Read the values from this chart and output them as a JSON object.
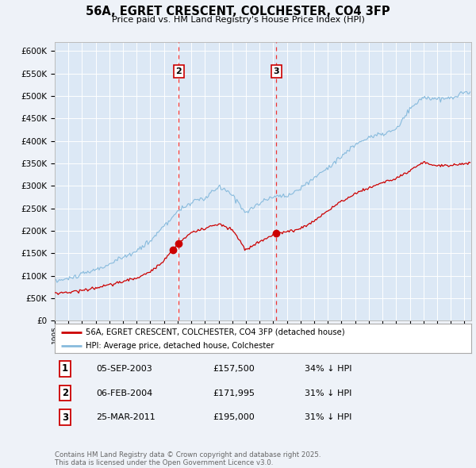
{
  "title": "56A, EGRET CRESCENT, COLCHESTER, CO4 3FP",
  "subtitle": "Price paid vs. HM Land Registry's House Price Index (HPI)",
  "background_color": "#eef2f8",
  "plot_bg_color": "#dce8f5",
  "grid_color": "#ffffff",
  "xlim_start": 1995.0,
  "xlim_end": 2025.5,
  "ylim_min": 0,
  "ylim_max": 620000,
  "yticks": [
    0,
    50000,
    100000,
    150000,
    200000,
    250000,
    300000,
    350000,
    400000,
    450000,
    500000,
    550000,
    600000
  ],
  "ytick_labels": [
    "£0",
    "£50K",
    "£100K",
    "£150K",
    "£200K",
    "£250K",
    "£300K",
    "£350K",
    "£400K",
    "£450K",
    "£500K",
    "£550K",
    "£600K"
  ],
  "xticks": [
    1995,
    1996,
    1997,
    1998,
    1999,
    2000,
    2001,
    2002,
    2003,
    2004,
    2005,
    2006,
    2007,
    2008,
    2009,
    2010,
    2011,
    2012,
    2013,
    2014,
    2015,
    2016,
    2017,
    2018,
    2019,
    2020,
    2021,
    2022,
    2023,
    2024,
    2025
  ],
  "red_line_color": "#cc0000",
  "blue_line_color": "#88bbdd",
  "vline_color": "#ee3333",
  "transactions": [
    {
      "id": 1,
      "date_decimal": 2003.67,
      "price": 157500,
      "label": "1"
    },
    {
      "id": 2,
      "date_decimal": 2004.09,
      "price": 171995,
      "label": "2"
    },
    {
      "id": 3,
      "date_decimal": 2011.22,
      "price": 195000,
      "label": "3"
    }
  ],
  "legend_label_red": "56A, EGRET CRESCENT, COLCHESTER, CO4 3FP (detached house)",
  "legend_label_blue": "HPI: Average price, detached house, Colchester",
  "table_rows": [
    {
      "num": "1",
      "date": "05-SEP-2003",
      "price": "£157,500",
      "hpi": "34% ↓ HPI"
    },
    {
      "num": "2",
      "date": "06-FEB-2004",
      "price": "£171,995",
      "hpi": "31% ↓ HPI"
    },
    {
      "num": "3",
      "date": "25-MAR-2011",
      "price": "£195,000",
      "hpi": "31% ↓ HPI"
    }
  ],
  "footer": "Contains HM Land Registry data © Crown copyright and database right 2025.\nThis data is licensed under the Open Government Licence v3.0."
}
